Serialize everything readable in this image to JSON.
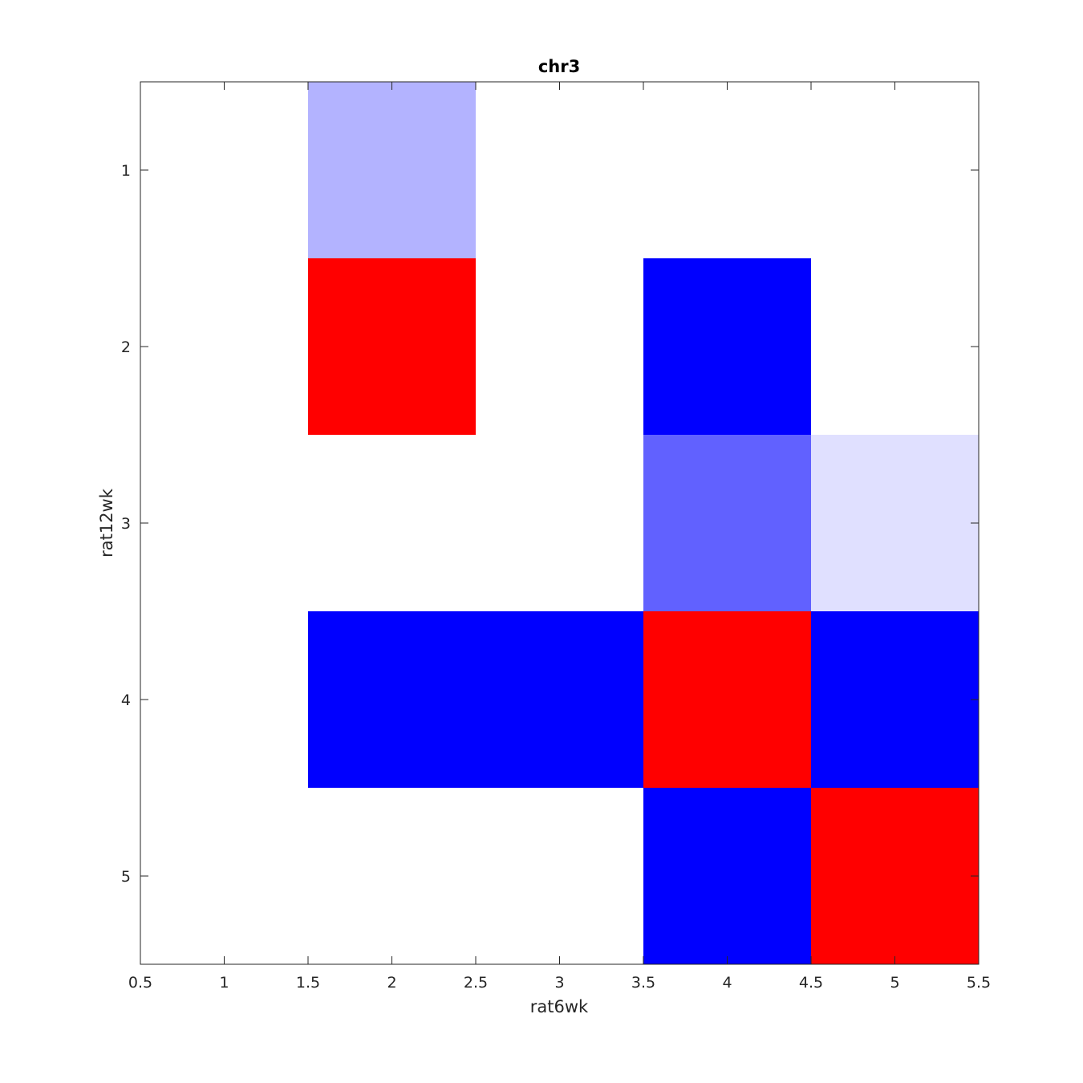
{
  "chart_data": {
    "type": "heatmap",
    "title": "chr3",
    "xlabel": "rat6wk",
    "ylabel": "rat12wk",
    "xlim": [
      0.5,
      5.5
    ],
    "ylim": [
      0.5,
      5.5
    ],
    "y_reversed": true,
    "x_ticks": [
      "0.5",
      "1",
      "1.5",
      "2",
      "2.5",
      "3",
      "3.5",
      "4",
      "4.5",
      "5",
      "5.5"
    ],
    "y_ticks": [
      "1",
      "2",
      "3",
      "4",
      "5"
    ],
    "grid": false,
    "colormap": {
      "low": "#0000ff",
      "mid": "#ffffff",
      "high": "#ff0000"
    },
    "rows": [
      1,
      2,
      3,
      4,
      5
    ],
    "cols": [
      1,
      2,
      3,
      4,
      5
    ],
    "values": [
      [
        0,
        -0.3,
        0,
        0,
        0
      ],
      [
        0,
        1,
        0,
        -1,
        0
      ],
      [
        0,
        0,
        0,
        -0.62,
        -0.12
      ],
      [
        0,
        -1,
        -1,
        1,
        -1
      ],
      [
        0,
        0,
        0,
        -1,
        1
      ]
    ]
  }
}
